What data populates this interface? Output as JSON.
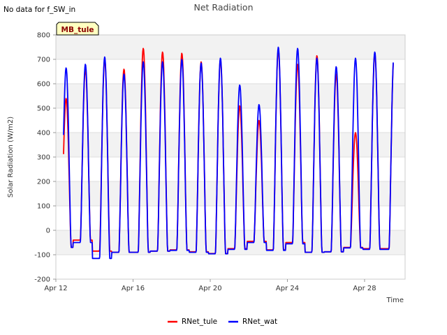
{
  "no_data_note": "No data for f_SW_in",
  "site_badge": "MB_tule",
  "chart_data": {
    "type": "line",
    "title": "Net Radiation",
    "xlabel": "Time",
    "ylabel": "Solar Radiation (W/m2)",
    "ylim": [
      -200,
      800
    ],
    "xlim_days": [
      12,
      30.1
    ],
    "yticks": [
      -200,
      -100,
      0,
      100,
      200,
      300,
      400,
      500,
      600,
      700,
      800
    ],
    "xticks": [
      {
        "day": 12,
        "label": "Apr 12"
      },
      {
        "day": 16,
        "label": "Apr 16"
      },
      {
        "day": 20,
        "label": "Apr 20"
      },
      {
        "day": 24,
        "label": "Apr 24"
      },
      {
        "day": 28,
        "label": "Apr 28"
      }
    ],
    "grid": true,
    "legend_position": "bottom-center",
    "day_start": 12.4,
    "day_end": 29.5,
    "series": [
      {
        "name": "RNet_tule",
        "color": "#ff0000",
        "daily_peak": [
          540,
          660,
          700,
          660,
          745,
          730,
          725,
          690,
          700,
          510,
          450,
          740,
          680,
          715,
          640,
          400,
          725
        ],
        "night_level": [
          -70,
          -40,
          -85,
          -90,
          -90,
          -85,
          -80,
          -88,
          -95,
          -75,
          -45,
          -80,
          -50,
          -90,
          -88,
          -70,
          -75
        ]
      },
      {
        "name": "RNet_wat",
        "color": "#0000ff",
        "daily_peak": [
          665,
          680,
          710,
          640,
          690,
          690,
          700,
          685,
          705,
          595,
          515,
          750,
          745,
          705,
          670,
          705,
          730
        ],
        "night_level": [
          -70,
          -50,
          -115,
          -90,
          -90,
          -85,
          -82,
          -90,
          -96,
          -78,
          -50,
          -82,
          -55,
          -90,
          -88,
          -72,
          -78
        ]
      }
    ]
  }
}
